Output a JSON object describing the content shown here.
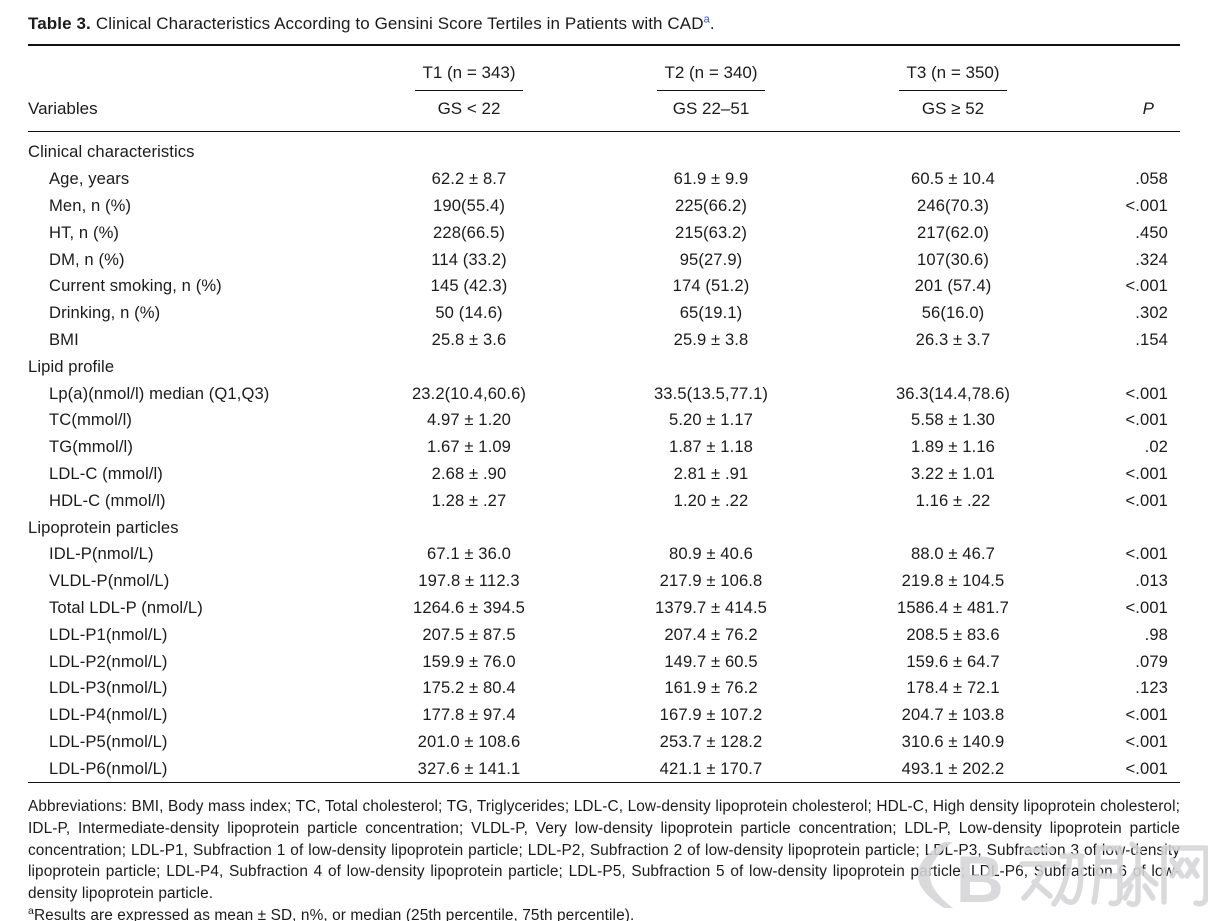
{
  "caption": {
    "label": "Table 3.",
    "text": "Clinical Characteristics According to Gensini Score Tertiles in Patients with CAD",
    "footnote_marker": "a",
    "suffix": "."
  },
  "table": {
    "header": {
      "variables_label": "Variables",
      "groups": [
        {
          "title": "T1 (n = 343)",
          "subtitle": "GS < 22"
        },
        {
          "title": "T2 (n = 340)",
          "subtitle": "GS 22–51"
        },
        {
          "title": "T3 (n = 350)",
          "subtitle": "GS ≥ 52"
        }
      ],
      "p_label": "P"
    },
    "sections": [
      {
        "title": "Clinical characteristics",
        "rows": [
          {
            "label": "Age, years",
            "t1": "62.2 ± 8.7",
            "t2": "61.9 ± 9.9",
            "t3": "60.5 ± 10.4",
            "p": ".058"
          },
          {
            "label": "Men, n (%)",
            "t1": "190(55.4)",
            "t2": "225(66.2)",
            "t3": "246(70.3)",
            "p": "<.001"
          },
          {
            "label": "HT, n (%)",
            "t1": "228(66.5)",
            "t2": "215(63.2)",
            "t3": "217(62.0)",
            "p": ".450"
          },
          {
            "label": "DM, n (%)",
            "t1": "114 (33.2)",
            "t2": "95(27.9)",
            "t3": "107(30.6)",
            "p": ".324"
          },
          {
            "label": "Current smoking, n (%)",
            "t1": "145 (42.3)",
            "t2": "174 (51.2)",
            "t3": "201 (57.4)",
            "p": "<.001"
          },
          {
            "label": "Drinking, n (%)",
            "t1": "50 (14.6)",
            "t2": "65(19.1)",
            "t3": "56(16.0)",
            "p": ".302"
          },
          {
            "label": "BMI",
            "t1": "25.8 ± 3.6",
            "t2": "25.9 ± 3.8",
            "t3": "26.3 ± 3.7",
            "p": ".154"
          }
        ]
      },
      {
        "title": "Lipid profile",
        "rows": [
          {
            "label": "Lp(a)(nmol/l) median (Q1,Q3)",
            "t1": "23.2(10.4,60.6)",
            "t2": "33.5(13.5,77.1)",
            "t3": "36.3(14.4,78.6)",
            "p": "<.001"
          },
          {
            "label": "TC(mmol/l)",
            "t1": "4.97 ± 1.20",
            "t2": "5.20 ± 1.17",
            "t3": "5.58 ± 1.30",
            "p": "<.001"
          },
          {
            "label": "TG(mmol/l)",
            "t1": "1.67 ± 1.09",
            "t2": "1.87 ± 1.18",
            "t3": "1.89 ± 1.16",
            "p": ".02"
          },
          {
            "label": "LDL-C (mmol/l)",
            "t1": "2.68 ± .90",
            "t2": "2.81 ± .91",
            "t3": "3.22 ± 1.01",
            "p": "<.001"
          },
          {
            "label": "HDL-C (mmol/l)",
            "t1": "1.28 ± .27",
            "t2": "1.20 ± .22",
            "t3": "1.16 ± .22",
            "p": "<.001"
          }
        ]
      },
      {
        "title": "Lipoprotein particles",
        "rows": [
          {
            "label": "IDL-P(nmol/L)",
            "t1": "67.1 ± 36.0",
            "t2": "80.9 ± 40.6",
            "t3": "88.0 ± 46.7",
            "p": "<.001"
          },
          {
            "label": "VLDL-P(nmol/L)",
            "t1": "197.8 ± 112.3",
            "t2": "217.9 ± 106.8",
            "t3": "219.8 ± 104.5",
            "p": ".013"
          },
          {
            "label": "Total LDL-P (nmol/L)",
            "t1": "1264.6 ± 394.5",
            "t2": "1379.7 ± 414.5",
            "t3": "1586.4 ± 481.7",
            "p": "<.001"
          },
          {
            "label": "LDL-P1(nmol/L)",
            "t1": "207.5 ± 87.5",
            "t2": "207.4 ± 76.2",
            "t3": "208.5 ± 83.6",
            "p": ".98"
          },
          {
            "label": "LDL-P2(nmol/L)",
            "t1": "159.9 ± 76.0",
            "t2": "149.7 ± 60.5",
            "t3": "159.6 ± 64.7",
            "p": ".079"
          },
          {
            "label": "LDL-P3(nmol/L)",
            "t1": "175.2 ± 80.4",
            "t2": "161.9 ± 76.2",
            "t3": "178.4 ± 72.1",
            "p": ".123"
          },
          {
            "label": "LDL-P4(nmol/L)",
            "t1": "177.8 ± 97.4",
            "t2": "167.9 ± 107.2",
            "t3": "204.7 ± 103.8",
            "p": "<.001"
          },
          {
            "label": "LDL-P5(nmol/L)",
            "t1": "201.0 ± 108.6",
            "t2": "253.7 ± 128.2",
            "t3": "310.6 ± 140.9",
            "p": "<.001"
          },
          {
            "label": "LDL-P6(nmol/L)",
            "t1": "327.6 ± 141.1",
            "t2": "421.1 ± 170.7",
            "t3": "493.1 ± 202.2",
            "p": "<.001"
          }
        ]
      }
    ]
  },
  "footnotes": {
    "abbreviations": "Abbreviations: BMI, Body mass index; TC, Total cholesterol; TG, Triglycerides; LDL-C, Low-density lipoprotein cholesterol; HDL-C, High density lipoprotein cholesterol; IDL-P, Intermediate-density lipoprotein particle concentration; VLDL-P, Very low-density lipoprotein particle concentration; LDL-P, Low-density lipoprotein particle concentration; LDL-P1, Subfraction 1 of low-density lipoprotein particle; LDL-P2, Subfraction 2 of low-density lipoprotein particle; LDL-P3, Subfraction 3 of low-density lipoprotein particle; LDL-P4, Subfraction 4 of low-density lipoprotein particle; LDL-P5, Subfraction 5 of low-density lipoprotein particle; LDL-P6, Subfraction 6 of low-density lipoprotein particle.",
    "results_marker": "a",
    "results": "Results are expressed as mean ± SD, n%, or median (25th percentile, 75th percentile)."
  },
  "watermark": {
    "text": "动脉网",
    "logo": "vcbeat-logo",
    "color": "#d6d6d8"
  },
  "colors": {
    "text": "#1b1b1b",
    "rule": "#111111",
    "footnote_marker_blue": "#2c53c7"
  }
}
